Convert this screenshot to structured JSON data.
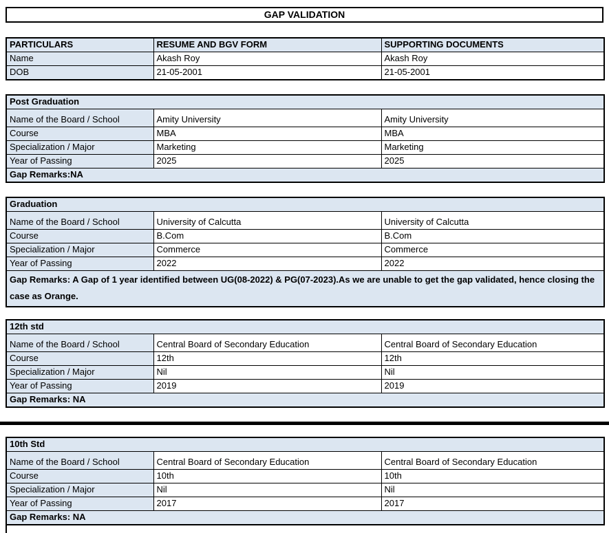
{
  "page": {
    "title": "GAP VALIDATION"
  },
  "colors": {
    "fill": "#dce6f1",
    "border": "#000000",
    "background": "#ffffff"
  },
  "particulars": {
    "headers": {
      "col1": "PARTICULARS",
      "col2": "RESUME AND BGV FORM",
      "col3": "SUPPORTING DOCUMENTS"
    },
    "rows": [
      {
        "label": "Name",
        "resume": "Akash Roy",
        "supporting": "Akash Roy"
      },
      {
        "label": "DOB",
        "resume": "21-05-2001",
        "supporting": "21-05-2001"
      }
    ]
  },
  "sections": [
    {
      "title": "Post Graduation",
      "rows": [
        {
          "label": "Name of the Board / School",
          "resume": "Amity University",
          "supporting": "Amity University"
        },
        {
          "label": "Course",
          "resume": "MBA",
          "supporting": "MBA"
        },
        {
          "label": "Specialization / Major",
          "resume": "Marketing",
          "supporting": "Marketing"
        },
        {
          "label": "Year of Passing",
          "resume": "2025",
          "supporting": "2025"
        }
      ],
      "gap_remarks": "Gap Remarks:NA"
    },
    {
      "title": "Graduation",
      "rows": [
        {
          "label": "Name of the Board / School",
          "resume": "University of Calcutta",
          "supporting": "University of Calcutta"
        },
        {
          "label": "Course",
          "resume": "B.Com",
          "supporting": "B.Com"
        },
        {
          "label": "Specialization / Major",
          "resume": "Commerce",
          "supporting": "Commerce"
        },
        {
          "label": "Year of Passing",
          "resume": "2022",
          "supporting": "2022"
        }
      ],
      "gap_remarks": "Gap Remarks: A Gap of 1 year identified between UG(08-2022) & PG(07-2023).As we are unable to get the gap validated, hence closing the case as Orange."
    },
    {
      "title": "12th std",
      "rows": [
        {
          "label": "Name of the Board / School",
          "resume": "Central Board of Secondary Education",
          "supporting": "Central Board of Secondary Education"
        },
        {
          "label": "Course",
          "resume": "12th",
          "supporting": "12th"
        },
        {
          "label": "Specialization / Major",
          "resume": "Nil",
          "supporting": "Nil"
        },
        {
          "label": "Year of Passing",
          "resume": "2019",
          "supporting": "2019"
        }
      ],
      "gap_remarks": "Gap Remarks: NA"
    },
    {
      "title": "10th Std",
      "rows": [
        {
          "label": "Name of the Board / School",
          "resume": "Central Board of Secondary Education",
          "supporting": "Central Board of Secondary Education"
        },
        {
          "label": "Course",
          "resume": "10th",
          "supporting": "10th"
        },
        {
          "label": "Specialization / Major",
          "resume": "Nil",
          "supporting": "Nil"
        },
        {
          "label": "Year of Passing",
          "resume": "2017",
          "supporting": "2017"
        }
      ],
      "gap_remarks": "Gap Remarks: NA"
    }
  ]
}
